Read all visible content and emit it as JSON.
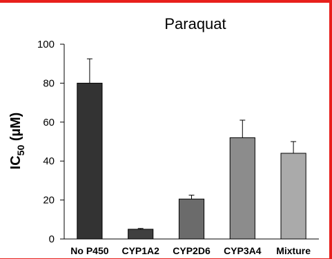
{
  "chart_data": {
    "type": "bar",
    "title": "Paraquat",
    "ylabel": {
      "main": "IC",
      "sub": "50",
      "unit": " (µM)"
    },
    "xlabel": "",
    "categories": [
      "No P450",
      "CYP1A2",
      "CYP2D6",
      "CYP3A4",
      "Mixture"
    ],
    "values": [
      80,
      5,
      20.5,
      52,
      44
    ],
    "errors": [
      12.5,
      0.4,
      2,
      9,
      6
    ],
    "colors": [
      "#333333",
      "#3f3f3f",
      "#6b6b6b",
      "#8c8c8c",
      "#aaaaaa"
    ],
    "ylim": [
      0,
      100
    ],
    "yticks": [
      0,
      20,
      40,
      60,
      80,
      100
    ],
    "grid": false,
    "legend": "none"
  }
}
